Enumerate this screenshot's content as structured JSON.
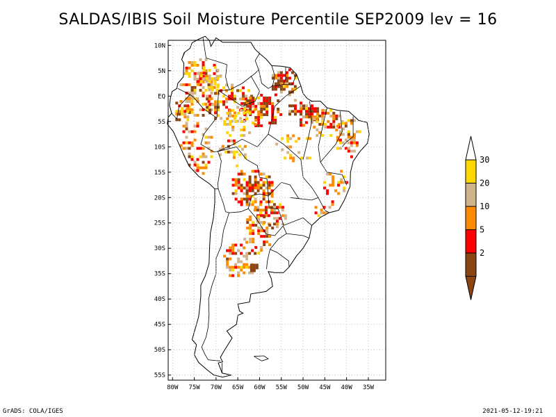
{
  "title": "SALDAS/IBIS Soil Moisture Percentile SEP2009 lev = 16",
  "footer": {
    "left": "GrADS: COLA/IGES",
    "right": "2021-05-12-19:21"
  },
  "map": {
    "region": "South America",
    "lon_range": [
      -81,
      -31
    ],
    "lat_range": [
      -56,
      11
    ],
    "lat_ticks": [
      {
        "value": 10,
        "label": "10N"
      },
      {
        "value": 5,
        "label": "5N"
      },
      {
        "value": 0,
        "label": "EQ"
      },
      {
        "value": -5,
        "label": "5S"
      },
      {
        "value": -10,
        "label": "10S"
      },
      {
        "value": -15,
        "label": "15S"
      },
      {
        "value": -20,
        "label": "20S"
      },
      {
        "value": -25,
        "label": "25S"
      },
      {
        "value": -30,
        "label": "30S"
      },
      {
        "value": -35,
        "label": "35S"
      },
      {
        "value": -40,
        "label": "40S"
      },
      {
        "value": -45,
        "label": "45S"
      },
      {
        "value": -50,
        "label": "50S"
      },
      {
        "value": -55,
        "label": "55S"
      }
    ],
    "lon_ticks": [
      {
        "value": -80,
        "label": "80W"
      },
      {
        "value": -75,
        "label": "75W"
      },
      {
        "value": -70,
        "label": "70W"
      },
      {
        "value": -65,
        "label": "65W"
      },
      {
        "value": -60,
        "label": "60W"
      },
      {
        "value": -55,
        "label": "55W"
      },
      {
        "value": -50,
        "label": "50W"
      },
      {
        "value": -45,
        "label": "45W"
      },
      {
        "value": -40,
        "label": "40W"
      },
      {
        "value": -35,
        "label": "35W"
      }
    ],
    "grid": true
  },
  "legend": {
    "placement": "right",
    "bins": [
      {
        "label": "2",
        "color": "#8b4513"
      },
      {
        "label": "5",
        "color": "#ff0000"
      },
      {
        "label": "10",
        "color": "#ff8c00"
      },
      {
        "label": "20",
        "color": "#d2b48c"
      },
      {
        "label": "30",
        "color": "#ffd700"
      }
    ],
    "below_color": "#8b4513",
    "above_color": "#ffffff"
  }
}
